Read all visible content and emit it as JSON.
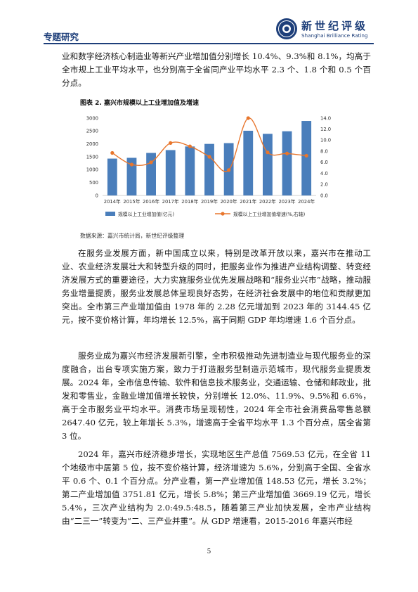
{
  "header": {
    "section": "专题研究",
    "logo_cn": "新世纪评级",
    "logo_en": "Shanghai Brilliance Rating"
  },
  "paragraphs": {
    "p0": "业和数字经济核心制造业等新兴产业增加值分别增长 10.4%、9.3%和 8.1%，均高于全市规上工业平均水平，也分别高于全省同产业平均水平 2.3 个、1.8 个和 0.5 个百分点。",
    "p1": "在服务业发展方面，新中国成立以来，特别是改革开放以来，嘉兴市在推动工业、农业经济发展壮大和转型升级的同时，把服务业作为推进产业结构调整、转变经济发展方式的重要途径，大力实施服务业优先发展战略和“服务业兴市”战略，推动服务业增量提质，服务业发展总体呈现良好态势，在经济社会发展中的地位和贡献更加突出。全市第三产业增加值由 1978 年的 2.28 亿元增加到 2023 年的 3144.45 亿元，按不变价格计算，年均增长 12.5%，高于同期 GDP 年均增速 1.6 个百分点。",
    "p2": "服务业成为嘉兴市经济发展新引擎，全市积极推动先进制造业与现代服务业的深度融合，出台专项实施方案，致力于打造服务型制造示范城市，现代服务业提质发展。2024 年，全市信息传输、软件和信息技术服务业，交通运输、仓储和邮政业，批发和零售业，金融业增加值增长较快，分别增长 12.0%、11.9%、9.5%和 6.6%，高于全市服务业平均水平。消费市场呈现韧性，2024 年全市社会消费品零售总额 2647.40 亿元，较上年增长 5.3%，增速高于全省平均水平 1.3 个百分点，居全省第 3 位。",
    "p3": "2024 年，嘉兴市经济稳步增长，实现地区生产总值 7569.53 亿元，在全省 11 个地级市中居第 5 位，按不变价格计算，经济增速为 5.6%，分别高于全国、全省水平 0.6 个、0.1 个百分点。分产业看，第一产业增加值 148.53 亿元，增长 3.2%；第二产业增加值 3751.81 亿元，增长 5.8%；第三产业增加值 3669.19 亿元，增长 5.4%，三次产业结构为 2.0:49.5:48.5，随着第三产业加快发展，全市产业结构由“二三一”转变为“二、三产业并重”。从 GDP 增速看，2015-2016 年嘉兴市经"
  },
  "figure": {
    "caption": "图表 2. 嘉兴市规模以上工业增加值及增速",
    "source": "数据来源：嘉兴市统计局，新世纪评级整理"
  },
  "chart_data": {
    "type": "bar",
    "title": "",
    "categories": [
      "2014年",
      "2015年",
      "2016年",
      "2017年",
      "2018年",
      "2019年",
      "2020年",
      "2021年",
      "2022年",
      "2023年",
      "2024年"
    ],
    "series": [
      {
        "name": "规模以上工业增加值(亿元)",
        "type": "bar",
        "axis": "left",
        "color": "#4a7ebb",
        "values": [
          1430,
          1460,
          1650,
          1760,
          1900,
          2000,
          2030,
          2510,
          2390,
          2490,
          2890
        ]
      },
      {
        "name": "规模以上工业增加值增速(%,右轴)",
        "type": "line",
        "axis": "right",
        "color": "#e8762d",
        "values": [
          7.7,
          5.6,
          6.0,
          9.5,
          8.9,
          7.0,
          4.6,
          14.0,
          7.8,
          7.6,
          7.2
        ]
      }
    ],
    "y_left": {
      "min": 0,
      "max": 3000,
      "ticks": [
        "0",
        "500",
        "1000",
        "1500",
        "2000",
        "2500",
        "3000"
      ]
    },
    "y_right": {
      "min": 0,
      "max": 14,
      "ticks": [
        "0.0",
        "2.0",
        "4.0",
        "6.0",
        "8.0",
        "10.0",
        "12.0",
        "14.0"
      ]
    },
    "grid": false,
    "legend": "bottom"
  }
}
